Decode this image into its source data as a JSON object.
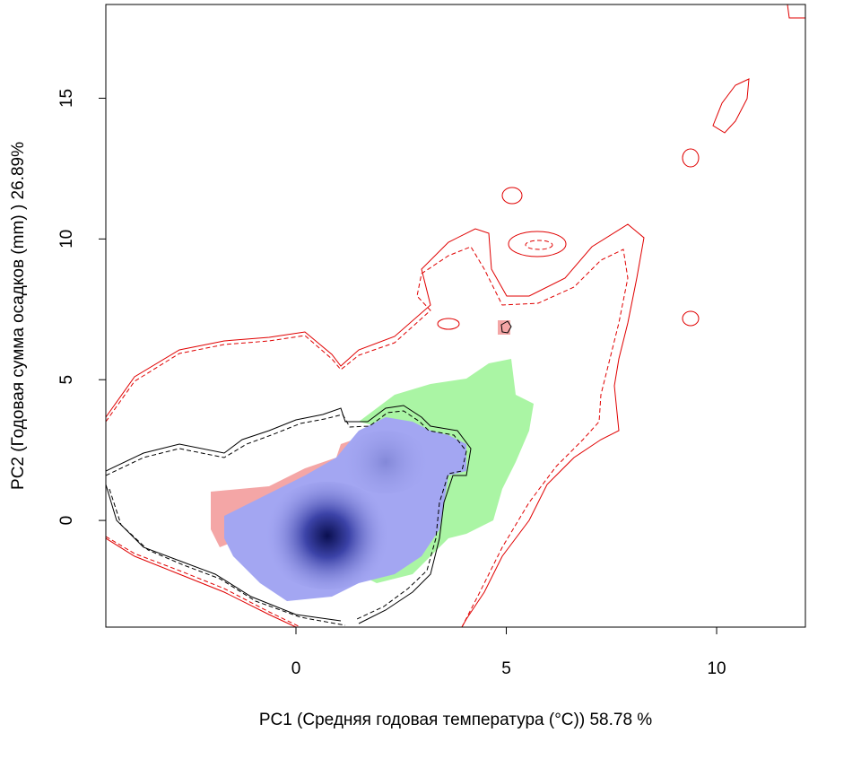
{
  "chart_data": {
    "type": "contour",
    "x_label": "PC1 (Средняя годовая температура (°C)) 58.78 %",
    "y_label": "PC2 (Годовая сумма осадков  (mm) ) 26.89%",
    "xlim": [
      -4.52,
      12.11
    ],
    "ylim": [
      -3.79,
      18.33
    ],
    "xticks": [
      0,
      5,
      10
    ],
    "yticks": [
      0,
      5,
      10,
      15
    ]
  }
}
